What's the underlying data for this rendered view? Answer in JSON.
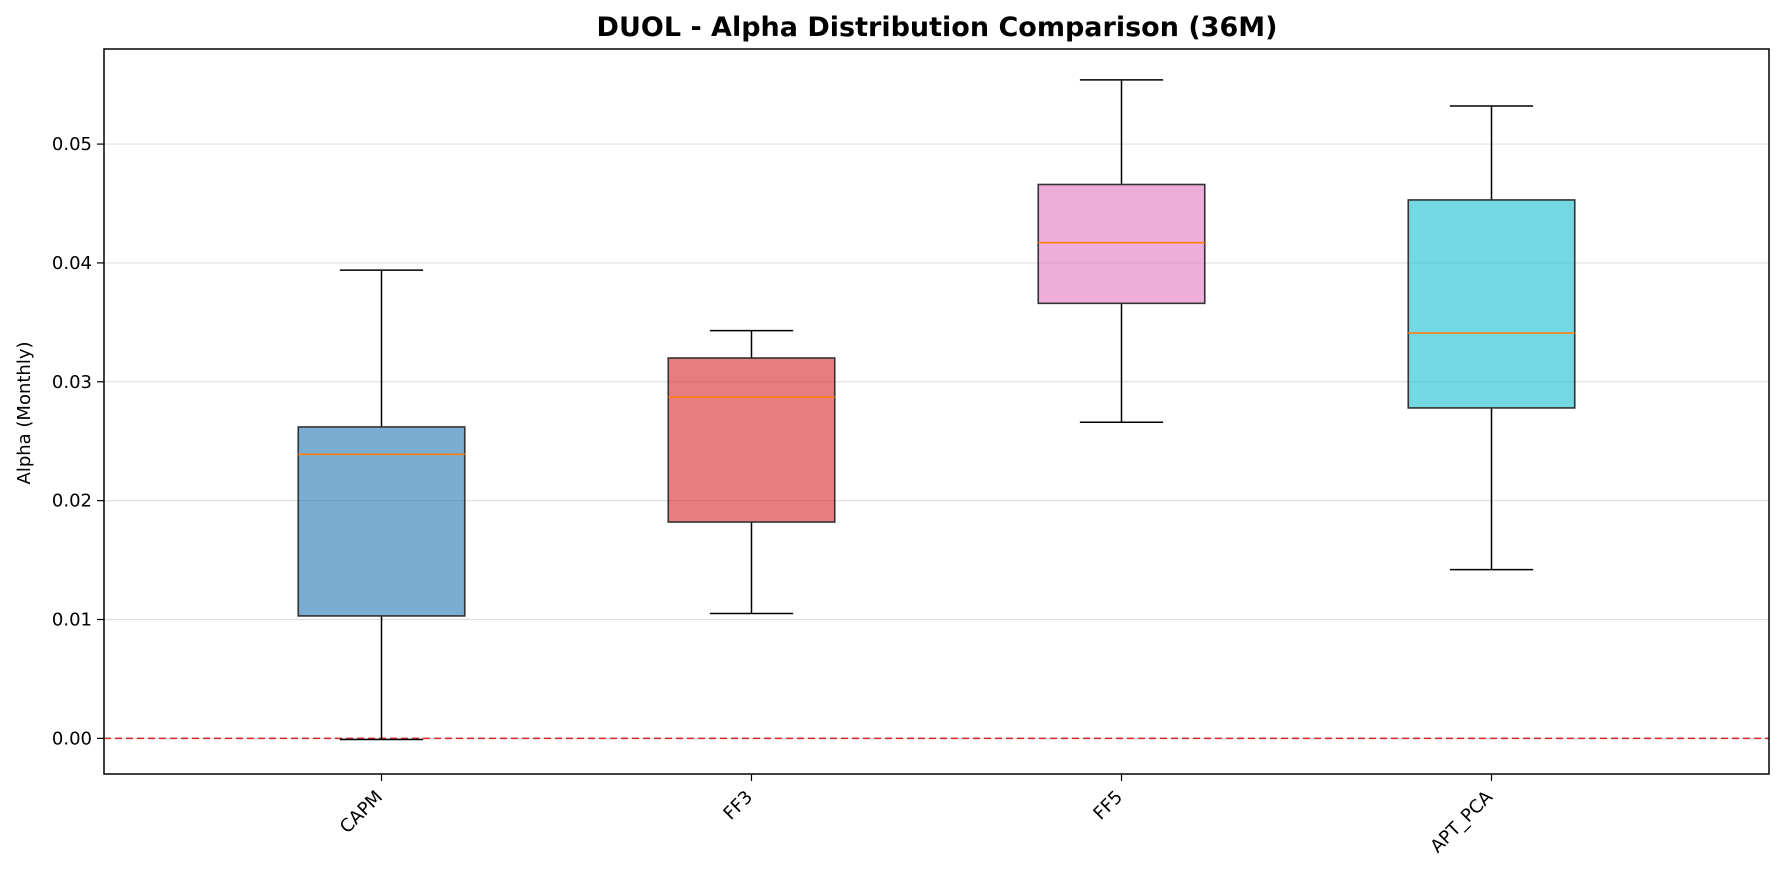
{
  "chart_data": {
    "type": "box",
    "title": "DUOL - Alpha Distribution Comparison (36M)",
    "xlabel": "",
    "ylabel": "Alpha (Monthly)",
    "ylim": [
      -0.003,
      0.058
    ],
    "yticks": [
      0.0,
      0.01,
      0.02,
      0.03,
      0.04,
      0.05
    ],
    "ytick_labels": [
      "0.00",
      "0.01",
      "0.02",
      "0.03",
      "0.04",
      "0.05"
    ],
    "grid": "y",
    "reference_line": {
      "y": 0.0,
      "color": "#d62728",
      "style": "dashed"
    },
    "categories": [
      "CAPM",
      "FF3",
      "FF5",
      "APT_PCA"
    ],
    "series": [
      {
        "category": "CAPM",
        "whisker_low": -0.0001,
        "q1": 0.0103,
        "median": 0.0239,
        "q3": 0.0262,
        "whisker_high": 0.0394,
        "color": "#1f77b4"
      },
      {
        "category": "FF3",
        "whisker_low": 0.0105,
        "q1": 0.0182,
        "median": 0.0287,
        "q3": 0.032,
        "whisker_high": 0.0343,
        "color": "#d62728"
      },
      {
        "category": "FF5",
        "whisker_low": 0.0266,
        "q1": 0.0366,
        "median": 0.0417,
        "q3": 0.0466,
        "whisker_high": 0.0554,
        "color": "#e377c2"
      },
      {
        "category": "APT_PCA",
        "whisker_low": 0.0142,
        "q1": 0.0278,
        "median": 0.0341,
        "q3": 0.0453,
        "whisker_high": 0.0532,
        "color": "#17becf"
      }
    ],
    "median_color": "#ff7f0e"
  }
}
